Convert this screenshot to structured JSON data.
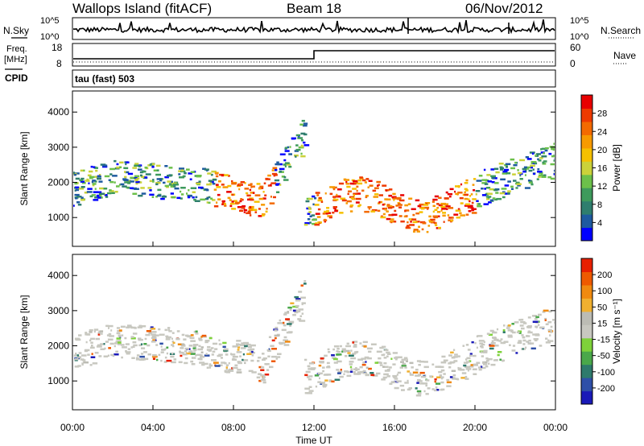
{
  "header": {
    "title": "Wallops Island (fitACF)",
    "beam": "Beam 18",
    "date": "06/Nov/2012"
  },
  "top_panels": {
    "nsky_label": "N.Sky",
    "nsearch_label": "N.Search",
    "noise_ticks": {
      "top": "10^5",
      "bottom": "10^0"
    },
    "freq_label_1": "Freq.",
    "freq_label_2": "[MHz]",
    "freq_ticks": [
      "18",
      "8"
    ],
    "nave_label": "Nave",
    "nave_ticks": [
      "60",
      "0"
    ],
    "cpid_label": "CPID",
    "cpid_text": "tau (fast) 503"
  },
  "chart_data": [
    {
      "type": "heatmap",
      "name": "power",
      "ylabel": "Slant Range [km]",
      "xlabel": "",
      "x_ticks": [
        "00:00",
        "04:00",
        "08:00",
        "12:00",
        "16:00",
        "20:00",
        "00:00"
      ],
      "y_ticks": [
        1000,
        2000,
        3000,
        4000
      ],
      "ylim": [
        180,
        4600
      ],
      "colorbar": {
        "label": "Power [dB]",
        "ticks": [
          "28",
          "24",
          "20",
          "16",
          "12",
          "8",
          "4"
        ],
        "colors": [
          "#0000ff",
          "#1e5aa0",
          "#2f7e6e",
          "#3e9a5c",
          "#6cc04a",
          "#cbd23a",
          "#f5c000",
          "#f79a00",
          "#f36a00",
          "#ee3a00",
          "#e80000"
        ]
      }
    },
    {
      "type": "heatmap",
      "name": "velocity",
      "ylabel": "Slant Range [km]",
      "xlabel": "Time UT",
      "x_ticks": [
        "00:00",
        "04:00",
        "08:00",
        "12:00",
        "16:00",
        "20:00",
        "00:00"
      ],
      "y_ticks": [
        1000,
        2000,
        3000,
        4000
      ],
      "ylim": [
        180,
        4600
      ],
      "colorbar": {
        "label": "Velocity [m s⁻¹]",
        "ticks": [
          "200",
          "100",
          "50",
          "15",
          "-15",
          "-50",
          "-100",
          "-200"
        ],
        "colors": [
          "#1a1ab8",
          "#2e4fa8",
          "#2e7a6c",
          "#4aa84a",
          "#7ed23a",
          "#c8c8c0",
          "#bcbcb4",
          "#f0b030",
          "#f08a10",
          "#ee5a00",
          "#e82000"
        ]
      }
    }
  ]
}
